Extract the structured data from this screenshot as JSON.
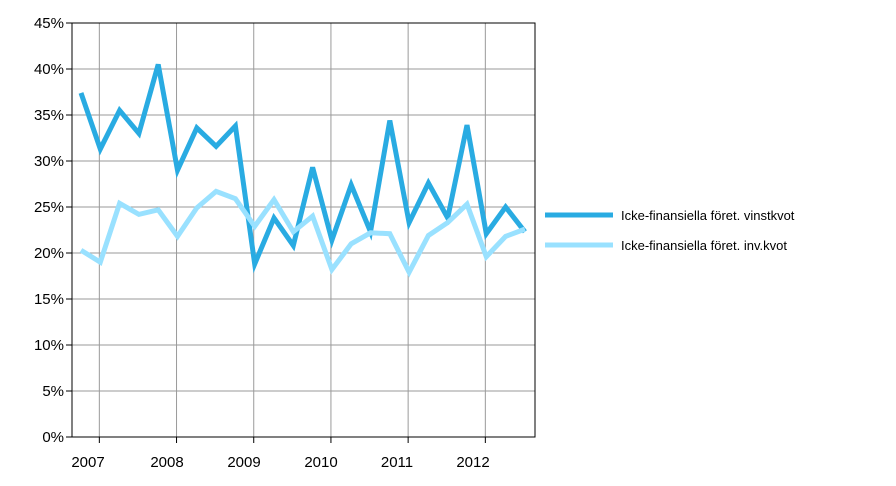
{
  "chart_data": {
    "type": "line",
    "title": "",
    "xlabel": "",
    "ylabel": "",
    "x_ticks": [
      "2007",
      "2008",
      "2009",
      "2010",
      "2011",
      "2012"
    ],
    "y_ticks": [
      "0%",
      "5%",
      "10%",
      "15%",
      "20%",
      "25%",
      "30%",
      "35%",
      "40%",
      "45%"
    ],
    "ylim": [
      0,
      45
    ],
    "grid": true,
    "legend_position": "right",
    "x": [
      "2006Q4",
      "2007Q1",
      "2007Q2",
      "2007Q3",
      "2007Q4",
      "2008Q1",
      "2008Q2",
      "2008Q3",
      "2008Q4",
      "2009Q1",
      "2009Q2",
      "2009Q3",
      "2009Q4",
      "2010Q1",
      "2010Q2",
      "2010Q3",
      "2010Q4",
      "2011Q1",
      "2011Q2",
      "2011Q3",
      "2011Q4",
      "2012Q1",
      "2012Q2",
      "2012Q3"
    ],
    "series": [
      {
        "name": "Icke-finansiella föret. vinstkvot",
        "color": "#29abe2",
        "values": [
          37.4,
          31.3,
          35.5,
          33.0,
          40.5,
          29.0,
          33.6,
          31.6,
          33.8,
          18.8,
          23.8,
          20.8,
          29.3,
          21.4,
          27.4,
          22.3,
          34.4,
          23.3,
          27.6,
          23.8,
          33.9,
          22.1,
          25.0,
          22.3
        ]
      },
      {
        "name": "Icke-finansiella föret. inv.kvot",
        "color": "#99e1ff",
        "values": [
          20.3,
          19.0,
          25.4,
          24.2,
          24.7,
          21.8,
          24.9,
          26.7,
          25.9,
          22.9,
          25.8,
          22.3,
          24.0,
          18.2,
          21.0,
          22.2,
          22.1,
          17.9,
          21.9,
          23.3,
          25.3,
          19.6,
          21.8,
          22.6
        ]
      }
    ]
  }
}
